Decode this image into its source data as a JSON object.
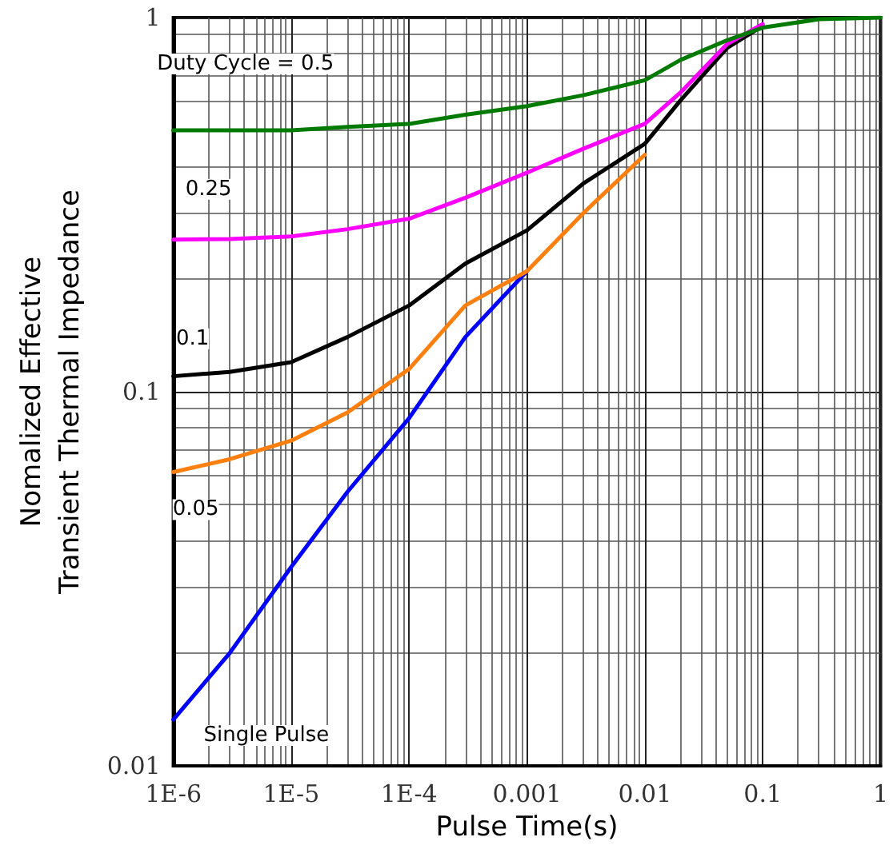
{
  "chart_data": {
    "type": "line",
    "xlabel": "Pulse Time(s)",
    "ylabel": "Nomalized Effective\nTransient Thermal Impedance",
    "log": "xy",
    "grid": true,
    "marker": "none",
    "line_style": "solid",
    "xlim": [
      1e-06,
      1
    ],
    "ylim": [
      0.01,
      1
    ],
    "xticks": [
      {
        "value": 1e-06,
        "label": "1E-6"
      },
      {
        "value": 1e-05,
        "label": "1E-5"
      },
      {
        "value": 0.0001,
        "label": "1E-4"
      },
      0.001,
      0.01,
      0.1,
      1
    ],
    "yticks": [
      0.01,
      0.1,
      1
    ],
    "x": [
      1e-06,
      3e-06,
      1e-05,
      3e-05,
      0.0001,
      0.0003,
      0.001,
      0.003,
      0.01,
      0.02,
      0.05,
      0.1,
      0.3,
      1
    ],
    "series": [
      {
        "name": "Duty Cycle = 0.5",
        "color": "#007a00",
        "values": [
          0.5,
          0.5,
          0.5,
          0.51,
          0.52,
          0.55,
          0.58,
          0.62,
          0.68,
          0.77,
          0.87,
          0.94,
          0.99,
          1
        ]
      },
      {
        "name": "0.25",
        "color": "#ff00ff",
        "values": [
          0.255,
          0.256,
          0.26,
          0.272,
          0.29,
          0.33,
          0.385,
          0.446,
          0.52,
          0.63,
          0.85,
          0.96,
          null,
          null
        ]
      },
      {
        "name": "0.1",
        "color": "#000000",
        "values": [
          0.11,
          0.113,
          0.12,
          0.14,
          0.17,
          0.22,
          0.27,
          0.36,
          0.46,
          0.6,
          0.83,
          0.95,
          null,
          null
        ]
      },
      {
        "name": "0.05",
        "color": "#ff7f0e",
        "values": [
          0.061,
          0.066,
          0.074,
          0.088,
          0.115,
          0.17,
          0.21,
          0.3,
          0.43,
          null,
          null,
          null,
          null,
          null
        ]
      },
      {
        "name": "Single Pulse",
        "color": "#0000ff",
        "values": [
          0.0133,
          0.02,
          0.034,
          0.054,
          0.085,
          0.14,
          0.21,
          null,
          null,
          null,
          null,
          null,
          null,
          null
        ]
      }
    ]
  }
}
